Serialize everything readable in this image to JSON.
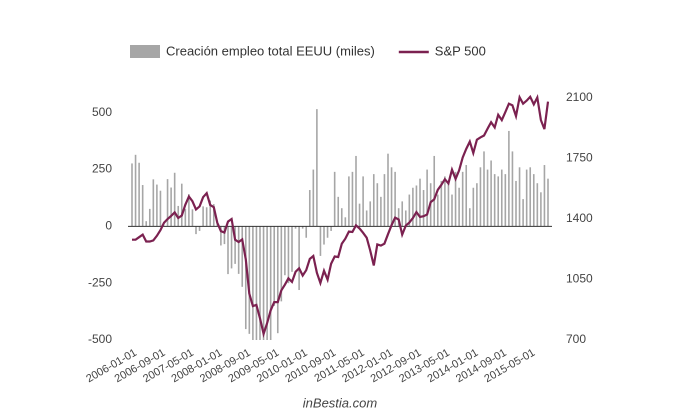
{
  "chart_data": {
    "type": "bar-line",
    "categories": [
      "2006-01-01",
      null,
      null,
      null,
      null,
      null,
      null,
      null,
      "2006-09-01",
      null,
      null,
      null,
      null,
      null,
      null,
      null,
      "2007-05-01",
      null,
      null,
      null,
      null,
      null,
      null,
      null,
      "2008-01-01",
      null,
      null,
      null,
      null,
      null,
      null,
      null,
      "2008-09-01",
      null,
      null,
      null,
      null,
      null,
      null,
      null,
      "2009-05-01",
      null,
      null,
      null,
      null,
      null,
      null,
      null,
      "2010-01-01",
      null,
      null,
      null,
      null,
      null,
      null,
      null,
      "2010-09-01",
      null,
      null,
      null,
      null,
      null,
      null,
      null,
      "2011-05-01",
      null,
      null,
      null,
      null,
      null,
      null,
      null,
      "2012-01-01",
      null,
      null,
      null,
      null,
      null,
      null,
      null,
      "2012-09-01",
      null,
      null,
      null,
      null,
      null,
      null,
      null,
      "2013-05-01",
      null,
      null,
      null,
      null,
      null,
      null,
      null,
      "2014-01-01",
      null,
      null,
      null,
      null,
      null,
      null,
      null,
      "2014-09-01",
      null,
      null,
      null,
      null,
      null,
      null,
      null,
      "2015-05-01",
      null,
      null,
      null,
      null,
      null
    ],
    "series": [
      {
        "name": "Creación empleo total EEUU (miles)",
        "color": "#a6a6a6",
        "kind": "bar",
        "values": [
          277,
          315,
          280,
          182,
          23,
          77,
          207,
          184,
          157,
          4,
          208,
          171,
          236,
          90,
          188,
          77,
          142,
          75,
          -34,
          -20,
          88,
          84,
          114,
          98,
          17,
          -84,
          -78,
          -210,
          -185,
          -165,
          -209,
          -266,
          -452,
          -473,
          -500,
          -500,
          -500,
          -500,
          -500,
          -500,
          -350,
          -470,
          -330,
          -215,
          -250,
          -200,
          -10,
          -280,
          -10,
          -50,
          160,
          250,
          516,
          -130,
          -80,
          -50,
          -20,
          240,
          130,
          80,
          40,
          220,
          240,
          310,
          100,
          220,
          70,
          110,
          230,
          190,
          130,
          230,
          320,
          260,
          240,
          80,
          110,
          70,
          140,
          170,
          180,
          210,
          160,
          250,
          190,
          310,
          140,
          200,
          220,
          190,
          140,
          240,
          170,
          240,
          270,
          80,
          170,
          190,
          260,
          330,
          250,
          290,
          230,
          220,
          250,
          230,
          420,
          330,
          200,
          260,
          120,
          250,
          260,
          230,
          190,
          150,
          270,
          210
        ]
      },
      {
        "name": "S&P 500",
        "color": "#7b2150",
        "kind": "line",
        "axis": "y2",
        "values": [
          1280,
          1280,
          1295,
          1310,
          1270,
          1270,
          1276,
          1303,
          1335,
          1378,
          1400,
          1418,
          1438,
          1406,
          1420,
          1482,
          1530,
          1503,
          1455,
          1473,
          1526,
          1549,
          1481,
          1468,
          1378,
          1330,
          1322,
          1385,
          1400,
          1280,
          1267,
          1282,
          1166,
          968,
          896,
          903,
          825,
          735,
          797,
          872,
          919,
          919,
          987,
          1020,
          1057,
          1036,
          1095,
          1115,
          1073,
          1104,
          1169,
          1186,
          1089,
          1030,
          1101,
          1049,
          1141,
          1183,
          1180,
          1257,
          1286,
          1327,
          1325,
          1363,
          1345,
          1320,
          1292,
          1218,
          1131,
          1253,
          1246,
          1257,
          1312,
          1365,
          1408,
          1397,
          1310,
          1362,
          1379,
          1406,
          1440,
          1412,
          1416,
          1426,
          1498,
          1514,
          1569,
          1597,
          1630,
          1606,
          1685,
          1632,
          1681,
          1756,
          1805,
          1848,
          1782,
          1859,
          1872,
          1883,
          1923,
          1960,
          1930,
          2003,
          1972,
          2018,
          2067,
          2058,
          1995,
          2104,
          2067,
          2085,
          2107,
          2063,
          2103,
          1972,
          1920,
          2079
        ]
      }
    ],
    "ylim": [
      -500,
      565
    ],
    "yticks": [
      -500,
      -250,
      0,
      250,
      500
    ],
    "y2lim": [
      700,
      2100
    ],
    "y2ticks": [
      700,
      1050,
      1400,
      1750,
      2100
    ],
    "legend": "top",
    "footer": "inBestia.com"
  }
}
